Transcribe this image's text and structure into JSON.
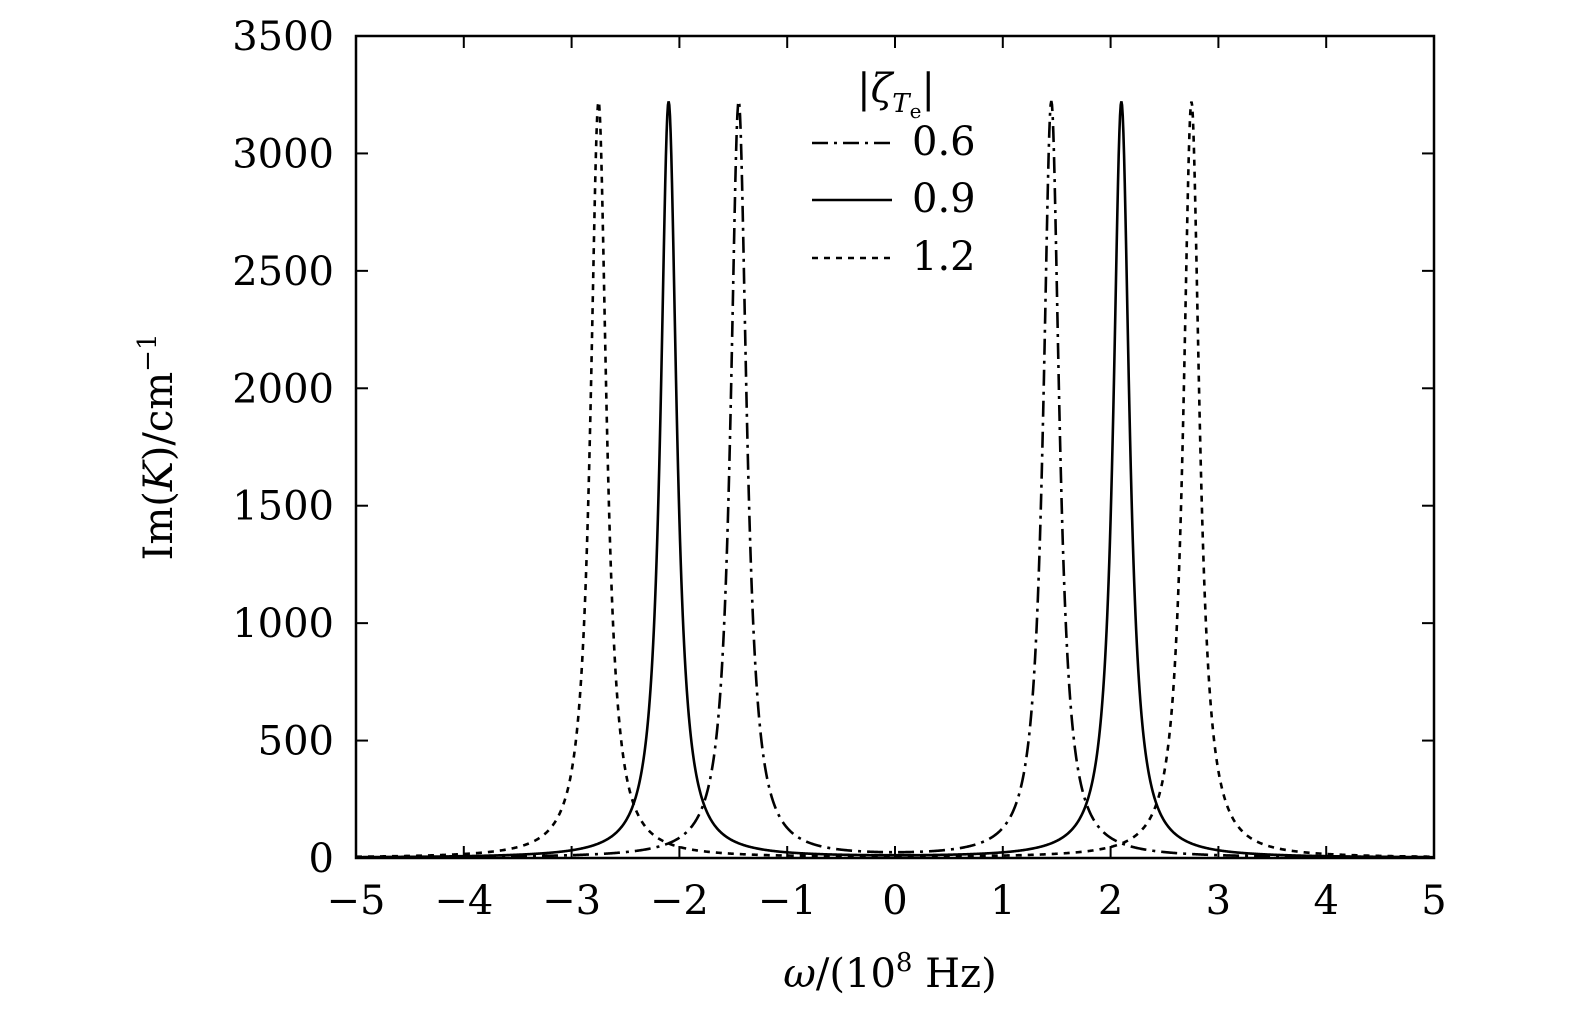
{
  "chart_data": {
    "type": "line",
    "title": "",
    "xlabel": "ω/(10⁸ Hz)",
    "xlabel_parts": {
      "symbol": "ω",
      "prefix": "/(10",
      "exponent": "8",
      "suffix": " Hz)"
    },
    "ylabel": "Im(K)/cm⁻¹",
    "ylabel_parts": {
      "im": "Im(",
      "symbol": "K",
      "close": ")/cm",
      "exponent": "−1"
    },
    "xlim": [
      -5,
      5
    ],
    "ylim": [
      0,
      3500
    ],
    "xticks": [
      -5,
      -4,
      -3,
      -2,
      -1,
      0,
      1,
      2,
      3,
      4,
      5
    ],
    "xtick_labels": [
      "−5",
      "−4",
      "−3",
      "−2",
      "−1",
      "0",
      "1",
      "2",
      "3",
      "4",
      "5"
    ],
    "yticks": [
      0,
      500,
      1000,
      1500,
      2000,
      2500,
      3000,
      3500
    ],
    "ytick_labels": [
      "0",
      "500",
      "1000",
      "1500",
      "2000",
      "2500",
      "3000",
      "3500"
    ],
    "grid": false,
    "legend": {
      "position": "top-center",
      "title": "|ζTe|",
      "title_parts": {
        "open": "|",
        "symbol": "ζ",
        "sub": "T",
        "subsub": "e",
        "close": "|"
      }
    },
    "series": [
      {
        "name": "0.6",
        "style": "dash-dot",
        "peaks": [
          -1.45,
          1.45
        ],
        "peak_value": 3220,
        "half_width": 0.09
      },
      {
        "name": "0.9",
        "style": "solid",
        "peaks": [
          -2.1,
          2.1
        ],
        "peak_value": 3220,
        "half_width": 0.09
      },
      {
        "name": "1.2",
        "style": "dotted",
        "peaks": [
          -2.75,
          2.75
        ],
        "peak_value": 3220,
        "half_width": 0.09
      }
    ],
    "colors": {
      "line": "#000000",
      "background": "#ffffff"
    }
  }
}
